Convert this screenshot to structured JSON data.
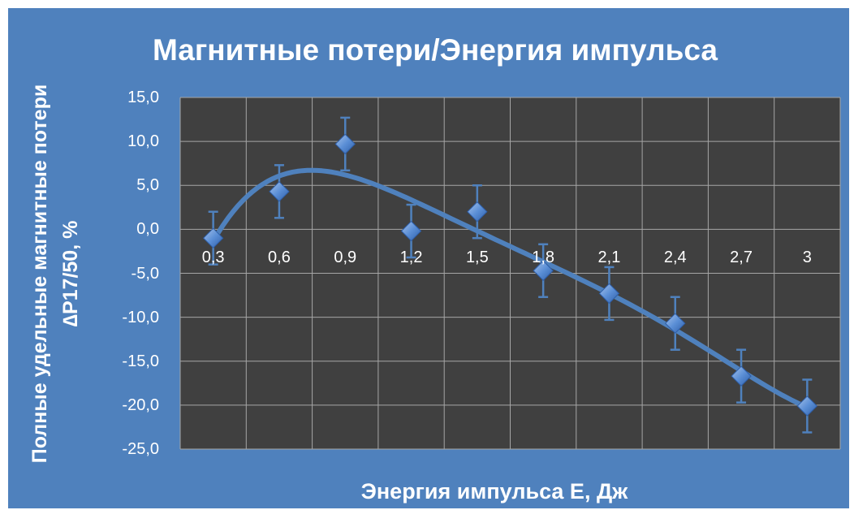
{
  "chart_data": {
    "type": "scatter",
    "title": "Магнитные потери/Энергия импульса",
    "xlabel": "Энергия импульса  Е, Дж",
    "ylabel": "Полные удельные магнитные потери  ∆Р17/50, %",
    "categories": [
      "0,3",
      "0,6",
      "0,9",
      "1,2",
      "1,5",
      "1,8",
      "2,1",
      "2,4",
      "2,7",
      "3"
    ],
    "x": [
      0.3,
      0.6,
      0.9,
      1.2,
      1.5,
      1.8,
      2.1,
      2.4,
      2.7,
      3.0
    ],
    "series": [
      {
        "values": [
          -1.0,
          4.3,
          9.7,
          -0.2,
          2.0,
          -4.7,
          -7.3,
          -10.7,
          -16.7,
          -20.1
        ],
        "error": 3.0,
        "marker": "diamond",
        "trendline": "polynomial"
      }
    ],
    "ylim": [
      -25,
      15
    ],
    "yticks": [
      "15,0",
      "10,0",
      "5,0",
      "0,0",
      "-5,0",
      "-10,0",
      "-15,0",
      "-20,0",
      "-25,0"
    ],
    "grid": true,
    "legend": "none",
    "colors": {
      "background": "#4f81bd",
      "plot_area": "#404040",
      "grid": "#a6a6a6",
      "series": "#4f81bd",
      "text": "#ffffff"
    }
  }
}
